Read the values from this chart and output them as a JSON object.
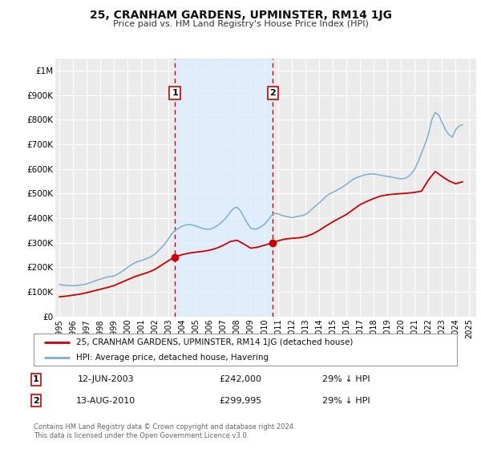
{
  "title": "25, CRANHAM GARDENS, UPMINSTER, RM14 1JG",
  "subtitle": "Price paid vs. HM Land Registry's House Price Index (HPI)",
  "background_color": "#ffffff",
  "plot_bg_color": "#ebebeb",
  "grid_color": "#ffffff",
  "ylim": [
    0,
    1050000
  ],
  "yticks": [
    0,
    100000,
    200000,
    300000,
    400000,
    500000,
    600000,
    700000,
    800000,
    900000,
    1000000
  ],
  "ytick_labels": [
    "£0",
    "£100K",
    "£200K",
    "£300K",
    "£400K",
    "£500K",
    "£600K",
    "£700K",
    "£800K",
    "£900K",
    "£1M"
  ],
  "xlim_start": 1994.7,
  "xlim_end": 2025.5,
  "xticks": [
    1995,
    1996,
    1997,
    1998,
    1999,
    2000,
    2001,
    2002,
    2003,
    2004,
    2005,
    2006,
    2007,
    2008,
    2009,
    2010,
    2011,
    2012,
    2013,
    2014,
    2015,
    2016,
    2017,
    2018,
    2019,
    2020,
    2021,
    2022,
    2023,
    2024,
    2025
  ],
  "sale1_x": 2003.45,
  "sale1_y": 242000,
  "sale2_x": 2010.62,
  "sale2_y": 299995,
  "red_line_color": "#cc0000",
  "blue_line_color": "#7aafd4",
  "shade_color": "#ddeeff",
  "legend_label_red": "25, CRANHAM GARDENS, UPMINSTER, RM14 1JG (detached house)",
  "legend_label_blue": "HPI: Average price, detached house, Havering",
  "sale1_date": "12-JUN-2003",
  "sale1_price": "£242,000",
  "sale1_hpi": "29% ↓ HPI",
  "sale2_date": "13-AUG-2010",
  "sale2_price": "£299,995",
  "sale2_hpi": "29% ↓ HPI",
  "footer1": "Contains HM Land Registry data © Crown copyright and database right 2024.",
  "footer2": "This data is licensed under the Open Government Licence v3.0.",
  "hpi_data_x": [
    1995.0,
    1995.25,
    1995.5,
    1995.75,
    1996.0,
    1996.25,
    1996.5,
    1996.75,
    1997.0,
    1997.25,
    1997.5,
    1997.75,
    1998.0,
    1998.25,
    1998.5,
    1998.75,
    1999.0,
    1999.25,
    1999.5,
    1999.75,
    2000.0,
    2000.25,
    2000.5,
    2000.75,
    2001.0,
    2001.25,
    2001.5,
    2001.75,
    2002.0,
    2002.25,
    2002.5,
    2002.75,
    2003.0,
    2003.25,
    2003.5,
    2003.75,
    2004.0,
    2004.25,
    2004.5,
    2004.75,
    2005.0,
    2005.25,
    2005.5,
    2005.75,
    2006.0,
    2006.25,
    2006.5,
    2006.75,
    2007.0,
    2007.25,
    2007.5,
    2007.75,
    2008.0,
    2008.25,
    2008.5,
    2008.75,
    2009.0,
    2009.25,
    2009.5,
    2009.75,
    2010.0,
    2010.25,
    2010.5,
    2010.75,
    2011.0,
    2011.25,
    2011.5,
    2011.75,
    2012.0,
    2012.25,
    2012.5,
    2012.75,
    2013.0,
    2013.25,
    2013.5,
    2013.75,
    2014.0,
    2014.25,
    2014.5,
    2014.75,
    2015.0,
    2015.25,
    2015.5,
    2015.75,
    2016.0,
    2016.25,
    2016.5,
    2016.75,
    2017.0,
    2017.25,
    2017.5,
    2017.75,
    2018.0,
    2018.25,
    2018.5,
    2018.75,
    2019.0,
    2019.25,
    2019.5,
    2019.75,
    2020.0,
    2020.25,
    2020.5,
    2020.75,
    2021.0,
    2021.25,
    2021.5,
    2021.75,
    2022.0,
    2022.25,
    2022.5,
    2022.75,
    2023.0,
    2023.25,
    2023.5,
    2023.75,
    2024.0,
    2024.25,
    2024.5
  ],
  "hpi_data_y": [
    130000,
    128000,
    127000,
    126000,
    125000,
    126000,
    128000,
    130000,
    133000,
    138000,
    143000,
    148000,
    152000,
    157000,
    161000,
    163000,
    165000,
    172000,
    180000,
    190000,
    200000,
    210000,
    218000,
    224000,
    228000,
    233000,
    238000,
    245000,
    255000,
    268000,
    282000,
    298000,
    318000,
    338000,
    352000,
    360000,
    368000,
    372000,
    375000,
    372000,
    368000,
    363000,
    358000,
    355000,
    355000,
    360000,
    368000,
    378000,
    390000,
    405000,
    425000,
    440000,
    445000,
    430000,
    405000,
    380000,
    360000,
    355000,
    358000,
    365000,
    375000,
    390000,
    410000,
    420000,
    418000,
    412000,
    408000,
    405000,
    402000,
    405000,
    408000,
    410000,
    415000,
    425000,
    438000,
    450000,
    462000,
    475000,
    488000,
    498000,
    505000,
    512000,
    520000,
    528000,
    538000,
    548000,
    558000,
    565000,
    570000,
    575000,
    578000,
    580000,
    580000,
    578000,
    575000,
    572000,
    570000,
    568000,
    565000,
    562000,
    560000,
    562000,
    568000,
    580000,
    600000,
    630000,
    665000,
    700000,
    740000,
    800000,
    830000,
    820000,
    790000,
    760000,
    740000,
    730000,
    760000,
    775000,
    780000
  ],
  "red_data_x": [
    1995.0,
    1995.5,
    1996.0,
    1996.5,
    1997.0,
    1997.5,
    1998.0,
    1998.5,
    1999.0,
    1999.5,
    2000.0,
    2000.5,
    2001.0,
    2001.5,
    2002.0,
    2002.5,
    2003.0,
    2003.45,
    2003.75,
    2004.0,
    2004.5,
    2005.0,
    2005.5,
    2006.0,
    2006.5,
    2007.0,
    2007.5,
    2008.0,
    2008.5,
    2009.0,
    2009.5,
    2010.0,
    2010.5,
    2010.62,
    2011.0,
    2011.5,
    2012.0,
    2012.5,
    2013.0,
    2013.5,
    2014.0,
    2014.5,
    2015.0,
    2015.5,
    2016.0,
    2016.5,
    2017.0,
    2017.5,
    2018.0,
    2018.5,
    2019.0,
    2019.5,
    2020.0,
    2020.5,
    2021.0,
    2021.5,
    2022.0,
    2022.5,
    2023.0,
    2023.5,
    2024.0,
    2024.5
  ],
  "red_data_y": [
    80000,
    83000,
    87000,
    91000,
    97000,
    104000,
    111000,
    118000,
    126000,
    138000,
    150000,
    162000,
    171000,
    180000,
    192000,
    210000,
    228000,
    242000,
    248000,
    252000,
    258000,
    262000,
    265000,
    270000,
    278000,
    290000,
    305000,
    310000,
    295000,
    278000,
    282000,
    290000,
    298000,
    299995,
    308000,
    315000,
    318000,
    320000,
    325000,
    335000,
    350000,
    368000,
    385000,
    400000,
    415000,
    435000,
    455000,
    468000,
    480000,
    490000,
    495000,
    498000,
    500000,
    502000,
    505000,
    510000,
    555000,
    590000,
    570000,
    552000,
    540000,
    548000
  ]
}
